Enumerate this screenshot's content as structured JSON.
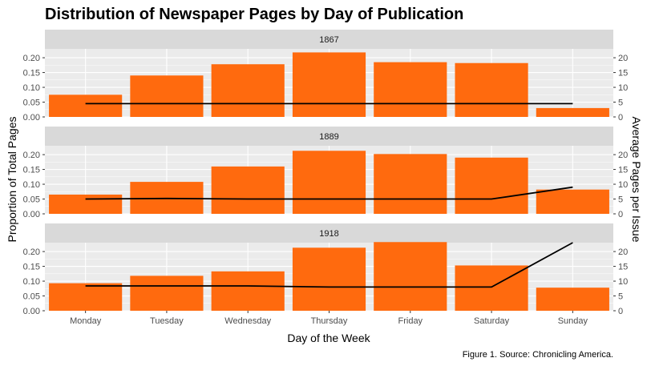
{
  "chart_data": {
    "type": "bar",
    "title": "Distribution of Newspaper Pages by Day of Publication",
    "xlabel": "Day of the Week",
    "ylabel": "Proportion of Total Pages",
    "ylabel_right": "Average Pages per Issue",
    "caption": "Figure 1. Source: Chronicling America.",
    "categories": [
      "Monday",
      "Tuesday",
      "Wednesday",
      "Thursday",
      "Friday",
      "Saturday",
      "Sunday"
    ],
    "ylim": [
      0,
      0.23
    ],
    "yticks": [
      "0.00",
      "0.05",
      "0.10",
      "0.15",
      "0.20"
    ],
    "y2lim": [
      0,
      23
    ],
    "y2ticks": [
      "0",
      "5",
      "10",
      "15",
      "20"
    ],
    "grid": true,
    "bar_color": "#FF6A0E",
    "line_color": "#000000",
    "panel_bg": "#EBEBEB",
    "strip_bg": "#D9D9D9",
    "panels": [
      {
        "label": "1867",
        "proportion": [
          0.075,
          0.14,
          0.178,
          0.218,
          0.185,
          0.182,
          0.03
        ],
        "avg_pages": [
          4.5,
          4.5,
          4.5,
          4.5,
          4.5,
          4.5,
          4.5
        ]
      },
      {
        "label": "1889",
        "proportion": [
          0.065,
          0.108,
          0.16,
          0.213,
          0.202,
          0.19,
          0.082
        ],
        "avg_pages": [
          5.0,
          5.2,
          5.0,
          5.0,
          5.0,
          5.0,
          9.0
        ]
      },
      {
        "label": "1918",
        "proportion": [
          0.093,
          0.118,
          0.133,
          0.213,
          0.232,
          0.153,
          0.078
        ],
        "avg_pages": [
          8.4,
          8.4,
          8.4,
          8.0,
          8.0,
          8.0,
          23.0
        ]
      }
    ]
  }
}
